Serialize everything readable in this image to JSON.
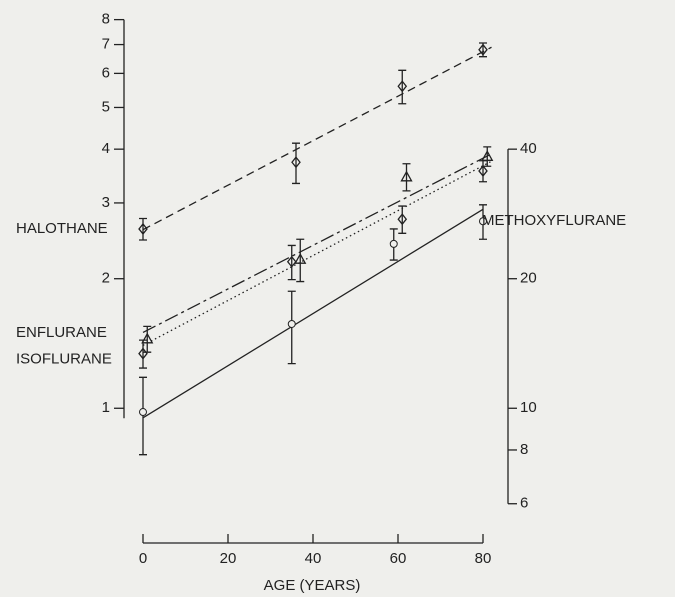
{
  "chart_data": {
    "type": "scatter",
    "xlabel": "AGE (YEARS)",
    "xlim": [
      -2,
      82
    ],
    "xticks": [
      0,
      20,
      40,
      60,
      80
    ],
    "ylim": [
      0.55,
      8.2
    ],
    "yticks": [
      1,
      2,
      3,
      4,
      5,
      6,
      7,
      8
    ],
    "log_y": true,
    "y2lim": [
      5.5,
      82
    ],
    "y2ticks": [
      6,
      8,
      10,
      20,
      40
    ],
    "log_y2": true,
    "series": [
      {
        "name": "HALOTHANE",
        "marker": "diamond",
        "linestyle": "dashed",
        "color": "#222",
        "x": [
          0,
          36,
          61,
          80
        ],
        "values": [
          2.61,
          3.73,
          5.6,
          6.81
        ],
        "errors": [
          0.15,
          0.4,
          0.5,
          0.25
        ],
        "trend": {
          "x": [
            0,
            82
          ],
          "values": [
            2.6,
            6.9
          ]
        }
      },
      {
        "name": "ENFLURANE",
        "marker": "triangle",
        "linestyle": "longdash",
        "color": "#222",
        "x": [
          1,
          37,
          62,
          81
        ],
        "values": [
          1.45,
          2.22,
          3.45,
          3.85
        ],
        "errors": [
          0.1,
          0.25,
          0.25,
          0.2
        ],
        "trend": {
          "x": [
            0,
            82
          ],
          "values": [
            1.5,
            3.9
          ]
        }
      },
      {
        "name": "ISOFLURANE",
        "marker": "diamond",
        "linestyle": "dotted",
        "color": "#222",
        "x": [
          0,
          35,
          61,
          80
        ],
        "values": [
          1.34,
          2.19,
          2.75,
          3.56
        ],
        "errors": [
          0.1,
          0.2,
          0.2,
          0.2
        ],
        "trend": {
          "x": [
            0,
            82
          ],
          "values": [
            1.4,
            3.75
          ]
        }
      },
      {
        "name": "METHOXYFLURANE",
        "marker": "circle",
        "linestyle": "solid",
        "color": "#222",
        "axis": "y2",
        "x": [
          0,
          35,
          59,
          80
        ],
        "values": [
          9.8,
          15.7,
          24.1,
          27.2
        ],
        "errors": [
          2,
          3,
          2,
          2.5
        ],
        "trend": {
          "x": [
            0,
            80
          ],
          "values": [
            9.5,
            29
          ]
        }
      }
    ]
  }
}
